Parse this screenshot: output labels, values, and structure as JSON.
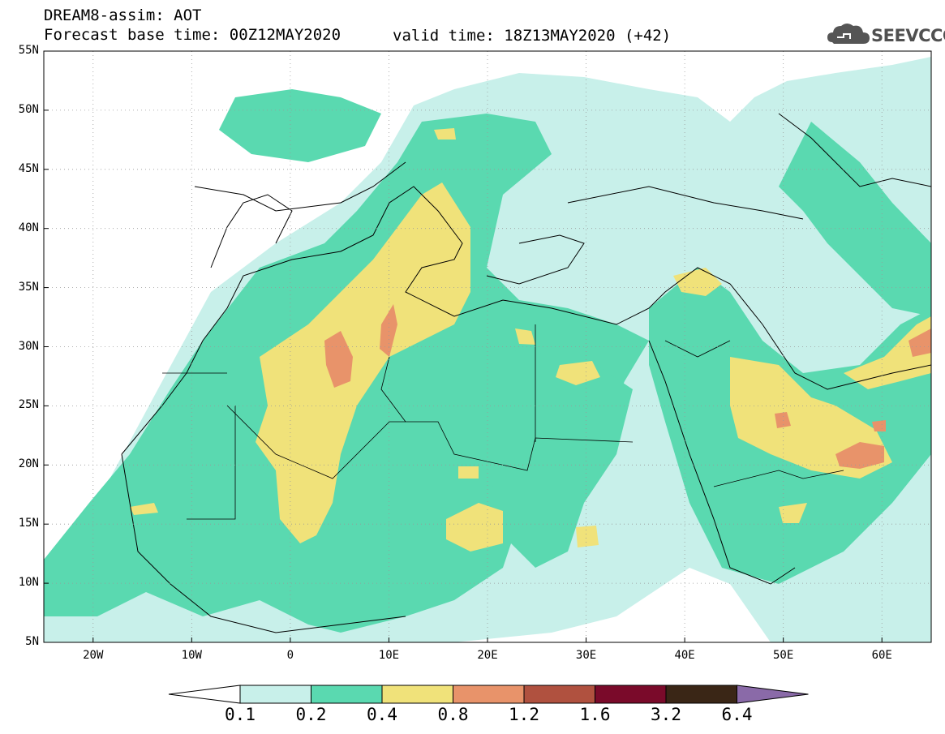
{
  "header": {
    "title": "DREAM8-assim: AOT",
    "base_time": "Forecast base time: 00Z12MAY2020",
    "valid_time": "valid time: 18Z13MAY2020 (+42)"
  },
  "logo": {
    "text": "SEEVCCC",
    "icon": "cloud-icon"
  },
  "map": {
    "variable": "AOT",
    "lat_labels": [
      "55N",
      "50N",
      "45N",
      "40N",
      "35N",
      "30N",
      "25N",
      "20N",
      "15N",
      "10N",
      "5N"
    ],
    "lon_labels": [
      "20W",
      "10W",
      "0",
      "10E",
      "20E",
      "30E",
      "40E",
      "50E",
      "60E"
    ],
    "lat_range": [
      5,
      55
    ],
    "lon_range": [
      -25,
      65
    ],
    "grid": "dotted"
  },
  "colorbar": {
    "levels": [
      "0.1",
      "0.2",
      "0.4",
      "0.8",
      "1.2",
      "1.6",
      "3.2",
      "6.4"
    ],
    "colors": [
      "#c8f0ea",
      "#5ad9b0",
      "#f0e27a",
      "#e8936a",
      "#b0513f",
      "#7a0a2a",
      "#3a2616",
      "#8a6aa8"
    ]
  }
}
